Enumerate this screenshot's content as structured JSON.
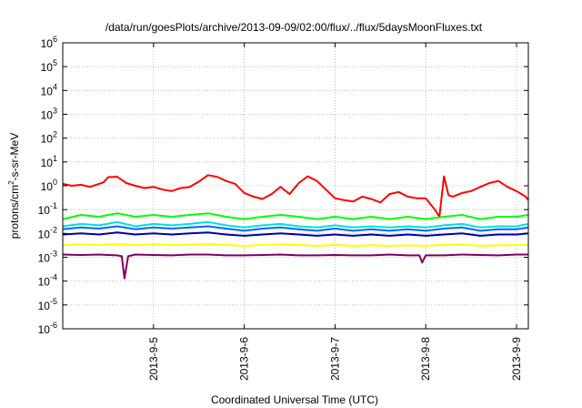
{
  "chart_data": {
    "type": "line",
    "title": "/data/run/goesPlots/archive/2013-09-09/02:00/flux/../flux/5daysMoonFluxes.txt",
    "xlabel": "Coordinated Universal Time (UTC)",
    "ylabel_base": "protons/cm",
    "ylabel_sup": "2",
    "ylabel_rest": "-s-sr-MeV",
    "yscale": "log",
    "ylim": [
      1e-06,
      1000000.0
    ],
    "xlim": [
      4.0,
      9.13
    ],
    "grid": true,
    "y_ticks": [
      {
        "exp": -6,
        "base": "10",
        "sup": "-6"
      },
      {
        "exp": -5,
        "base": "10",
        "sup": "-5"
      },
      {
        "exp": -4,
        "base": "10",
        "sup": "-4"
      },
      {
        "exp": -3,
        "base": "10",
        "sup": "-3"
      },
      {
        "exp": -2,
        "base": "10",
        "sup": "-2"
      },
      {
        "exp": -1,
        "base": "10",
        "sup": "-1"
      },
      {
        "exp": 0,
        "base": "10",
        "sup": "0"
      },
      {
        "exp": 1,
        "base": "10",
        "sup": "1"
      },
      {
        "exp": 2,
        "base": "10",
        "sup": "2"
      },
      {
        "exp": 3,
        "base": "10",
        "sup": "3"
      },
      {
        "exp": 4,
        "base": "10",
        "sup": "4"
      },
      {
        "exp": 5,
        "base": "10",
        "sup": "5"
      },
      {
        "exp": 6,
        "base": "10",
        "sup": "6"
      }
    ],
    "x_ticks": [
      {
        "x": 5,
        "label": "2013-9-5"
      },
      {
        "x": 6,
        "label": "2013-9-6"
      },
      {
        "x": 7,
        "label": "2013-9-7"
      },
      {
        "x": 8,
        "label": "2013-9-8"
      },
      {
        "x": 9,
        "label": "2013-9-9"
      }
    ],
    "series": [
      {
        "color": "#ff0000",
        "x": [
          4.0,
          4.1,
          4.2,
          4.3,
          4.4,
          4.45,
          4.5,
          4.6,
          4.7,
          4.8,
          4.9,
          5.0,
          5.1,
          5.2,
          5.3,
          5.4,
          5.5,
          5.6,
          5.7,
          5.8,
          5.9,
          6.0,
          6.1,
          6.2,
          6.3,
          6.4,
          6.5,
          6.6,
          6.7,
          6.8,
          6.9,
          7.0,
          7.1,
          7.2,
          7.3,
          7.4,
          7.5,
          7.6,
          7.7,
          7.8,
          7.9,
          8.0,
          8.1,
          8.15,
          8.2,
          8.25,
          8.3,
          8.4,
          8.5,
          8.6,
          8.7,
          8.8,
          8.9,
          9.0,
          9.1,
          9.13
        ],
        "values": [
          1.2,
          1.0,
          1.1,
          0.9,
          1.2,
          1.4,
          2.3,
          2.4,
          1.3,
          1.0,
          0.8,
          0.9,
          0.7,
          0.6,
          0.8,
          0.9,
          1.5,
          2.8,
          2.4,
          1.6,
          1.2,
          0.5,
          0.35,
          0.28,
          0.45,
          0.9,
          0.45,
          1.3,
          2.5,
          1.6,
          0.7,
          0.3,
          0.25,
          0.22,
          0.35,
          0.28,
          0.2,
          0.45,
          0.55,
          0.35,
          0.3,
          0.3,
          0.1,
          0.05,
          2.5,
          0.4,
          0.35,
          0.5,
          0.6,
          0.9,
          1.3,
          1.6,
          0.9,
          0.6,
          0.35,
          0.25
        ]
      },
      {
        "color": "#00ff00",
        "x": [
          4.0,
          4.2,
          4.4,
          4.6,
          4.8,
          5.0,
          5.2,
          5.4,
          5.6,
          5.8,
          6.0,
          6.2,
          6.4,
          6.6,
          6.8,
          7.0,
          7.2,
          7.4,
          7.6,
          7.8,
          8.0,
          8.2,
          8.4,
          8.6,
          8.8,
          9.0,
          9.13
        ],
        "values": [
          0.04,
          0.06,
          0.05,
          0.07,
          0.05,
          0.06,
          0.05,
          0.06,
          0.07,
          0.05,
          0.04,
          0.05,
          0.06,
          0.05,
          0.04,
          0.05,
          0.04,
          0.05,
          0.04,
          0.05,
          0.04,
          0.05,
          0.06,
          0.04,
          0.05,
          0.05,
          0.06
        ]
      },
      {
        "color": "#00e0e0",
        "x": [
          4.0,
          4.2,
          4.4,
          4.6,
          4.8,
          5.0,
          5.2,
          5.4,
          5.6,
          5.8,
          6.0,
          6.2,
          6.4,
          6.6,
          6.8,
          7.0,
          7.2,
          7.4,
          7.6,
          7.8,
          8.0,
          8.2,
          8.4,
          8.6,
          8.8,
          9.0,
          9.13
        ],
        "values": [
          0.02,
          0.025,
          0.022,
          0.03,
          0.02,
          0.025,
          0.022,
          0.025,
          0.03,
          0.022,
          0.018,
          0.022,
          0.025,
          0.02,
          0.018,
          0.022,
          0.018,
          0.02,
          0.018,
          0.02,
          0.018,
          0.022,
          0.025,
          0.018,
          0.02,
          0.02,
          0.025
        ]
      },
      {
        "color": "#0066ff",
        "x": [
          4.0,
          4.2,
          4.4,
          4.6,
          4.8,
          5.0,
          5.2,
          5.4,
          5.6,
          5.8,
          6.0,
          6.2,
          6.4,
          6.6,
          6.8,
          7.0,
          7.2,
          7.4,
          7.6,
          7.8,
          8.0,
          8.2,
          8.4,
          8.6,
          8.8,
          9.0,
          9.13
        ],
        "values": [
          0.015,
          0.018,
          0.016,
          0.02,
          0.015,
          0.018,
          0.016,
          0.018,
          0.02,
          0.016,
          0.013,
          0.016,
          0.018,
          0.015,
          0.013,
          0.016,
          0.013,
          0.015,
          0.013,
          0.015,
          0.013,
          0.016,
          0.018,
          0.013,
          0.015,
          0.015,
          0.018
        ]
      },
      {
        "color": "#0000aa",
        "x": [
          4.0,
          4.2,
          4.4,
          4.6,
          4.8,
          5.0,
          5.2,
          5.4,
          5.6,
          5.8,
          6.0,
          6.2,
          6.4,
          6.6,
          6.8,
          7.0,
          7.2,
          7.4,
          7.6,
          7.8,
          8.0,
          8.2,
          8.4,
          8.6,
          8.8,
          9.0,
          9.13
        ],
        "values": [
          0.009,
          0.01,
          0.009,
          0.011,
          0.009,
          0.01,
          0.009,
          0.01,
          0.011,
          0.009,
          0.008,
          0.009,
          0.01,
          0.009,
          0.008,
          0.009,
          0.008,
          0.009,
          0.008,
          0.009,
          0.008,
          0.009,
          0.01,
          0.008,
          0.009,
          0.009,
          0.01
        ]
      },
      {
        "color": "#ffff00",
        "x": [
          4.0,
          4.2,
          4.4,
          4.6,
          4.8,
          5.0,
          5.2,
          5.4,
          5.6,
          5.8,
          6.0,
          6.2,
          6.4,
          6.6,
          6.8,
          7.0,
          7.2,
          7.4,
          7.6,
          7.8,
          8.0,
          8.2,
          8.4,
          8.6,
          8.8,
          9.0,
          9.13
        ],
        "values": [
          0.0033,
          0.0035,
          0.0033,
          0.0036,
          0.0033,
          0.0035,
          0.0033,
          0.0034,
          0.0036,
          0.0033,
          0.003,
          0.0033,
          0.0035,
          0.0033,
          0.003,
          0.0033,
          0.003,
          0.0032,
          0.003,
          0.0032,
          0.003,
          0.0033,
          0.0035,
          0.003,
          0.0032,
          0.0032,
          0.0034
        ]
      },
      {
        "color": "#800060",
        "x": [
          4.0,
          4.2,
          4.4,
          4.6,
          4.65,
          4.68,
          4.72,
          4.8,
          5.0,
          5.2,
          5.4,
          5.6,
          5.8,
          6.0,
          6.2,
          6.4,
          6.6,
          6.8,
          7.0,
          7.2,
          7.4,
          7.6,
          7.8,
          7.93,
          7.96,
          8.0,
          8.2,
          8.4,
          8.6,
          8.8,
          9.0,
          9.13
        ],
        "values": [
          0.0013,
          0.00125,
          0.0013,
          0.0012,
          0.0011,
          0.00013,
          0.0011,
          0.0013,
          0.00125,
          0.0012,
          0.0013,
          0.0013,
          0.0012,
          0.0012,
          0.00125,
          0.0013,
          0.0012,
          0.0012,
          0.00125,
          0.0012,
          0.0012,
          0.0013,
          0.0012,
          0.0012,
          0.0006,
          0.0012,
          0.0012,
          0.0013,
          0.00125,
          0.0012,
          0.0013,
          0.0013
        ]
      }
    ]
  }
}
